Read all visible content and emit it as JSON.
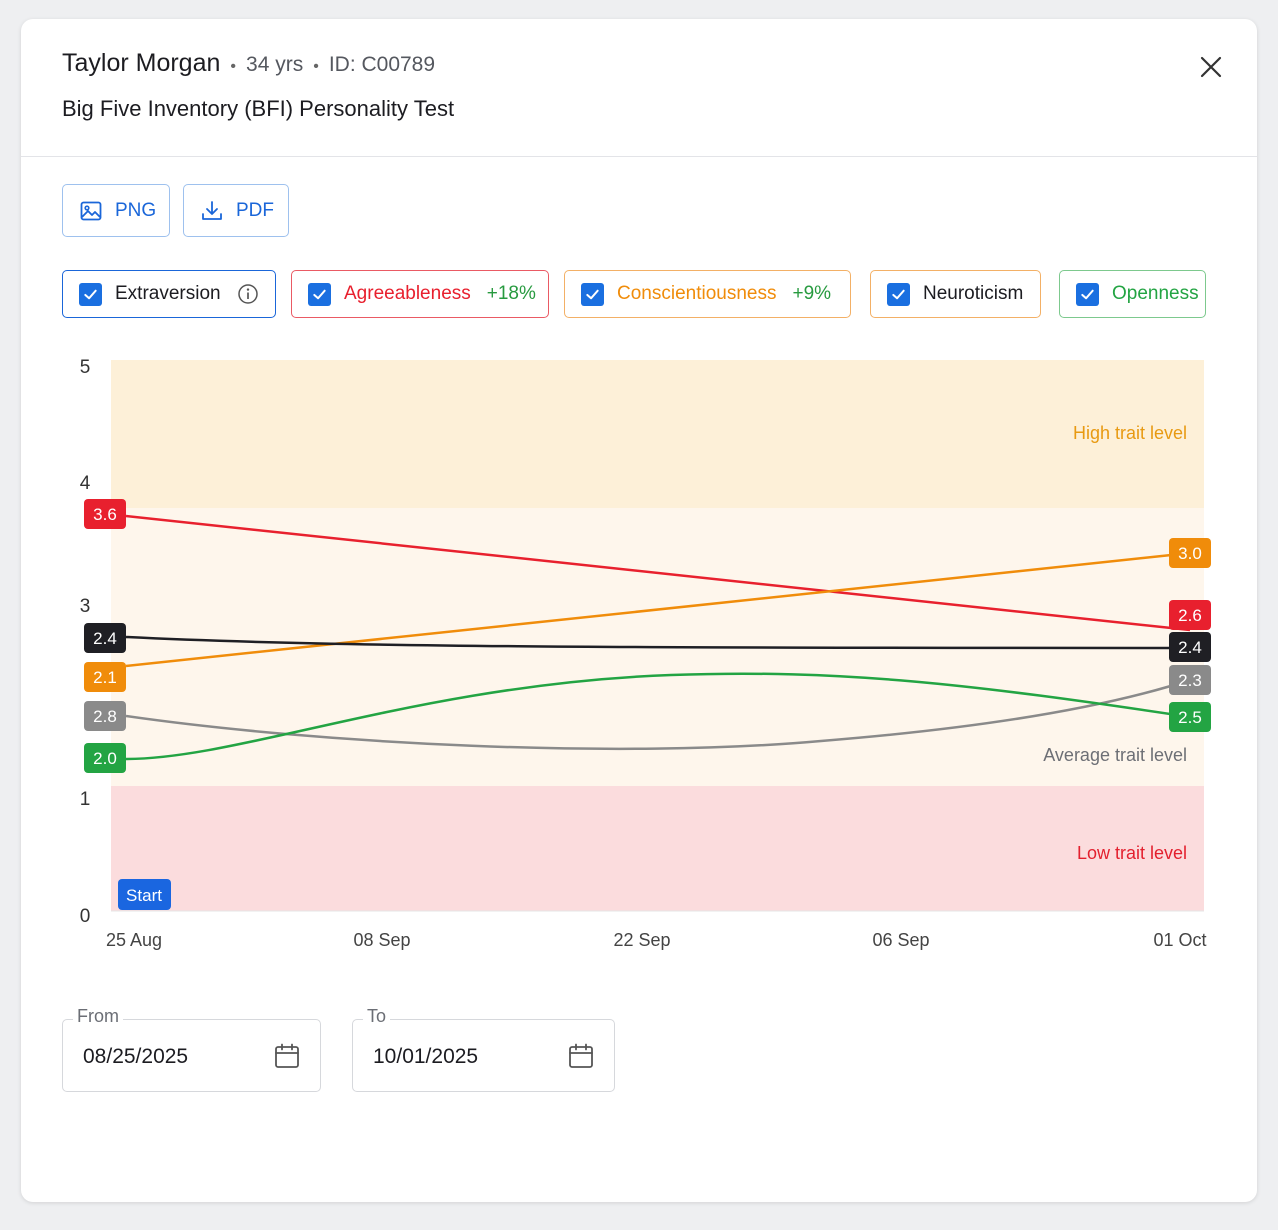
{
  "header": {
    "name": "Taylor Morgan",
    "sep": "•",
    "age": "34 yrs",
    "id": "ID: C00789",
    "subtitle": "Big Five Inventory (BFI) Personality Test"
  },
  "export": {
    "png_label": "PNG",
    "pdf_label": "PDF"
  },
  "legend": [
    {
      "label": "Extraversion",
      "delta": "",
      "color": "#1f1f24",
      "border": "#1a66d9",
      "text": "#1c1c21",
      "info": true
    },
    {
      "label": "Agreeableness",
      "delta": "+18%",
      "color": "#e8202e",
      "border": "#ea5a64",
      "text": "#e8202e"
    },
    {
      "label": "Conscientiousness",
      "delta": "+9%",
      "color": "#f08c0a",
      "border": "#f3b066",
      "text": "#f08c0a"
    },
    {
      "label": "Neuroticism",
      "delta": "",
      "color": "#8a8a8a",
      "border": "#f3b066",
      "text": "#1c1c21"
    },
    {
      "label": "Openness",
      "delta": "",
      "color": "#23a443",
      "border": "#7dc98e",
      "text": "#23a443"
    }
  ],
  "chart_data": {
    "type": "line",
    "y_ticks": [
      "5",
      "4",
      "3",
      "1",
      "0"
    ],
    "x_ticks": [
      "25 Aug",
      "08 Sep",
      "22 Sep",
      "06 Sep",
      "01 Oct"
    ],
    "bands": [
      {
        "label": "High trait level",
        "color": "#e89a12"
      },
      {
        "label": "Average trait level",
        "color": "#6d6f75"
      },
      {
        "label": "Low trait level",
        "color": "#e3202e"
      }
    ],
    "start_marker": "Start",
    "series": [
      {
        "name": "Agreeableness",
        "color": "#e8202e",
        "start_label": "3.6",
        "end_label": "2.6"
      },
      {
        "name": "Conscientiousness",
        "color": "#f08c0a",
        "start_label": "2.1",
        "end_label": "3.0"
      },
      {
        "name": "Extraversion",
        "color": "#1f1f24",
        "start_label": "2.4",
        "end_label": "2.4"
      },
      {
        "name": "Neuroticism",
        "color": "#8a8a8a",
        "start_label": "2.8",
        "end_label": "2.3"
      },
      {
        "name": "Openness",
        "color": "#23a443",
        "start_label": "2.0",
        "end_label": "2.5"
      }
    ]
  },
  "date_range": {
    "from_label": "From",
    "from_value": "08/25/2025",
    "to_label": "To",
    "to_value": "10/01/2025"
  }
}
